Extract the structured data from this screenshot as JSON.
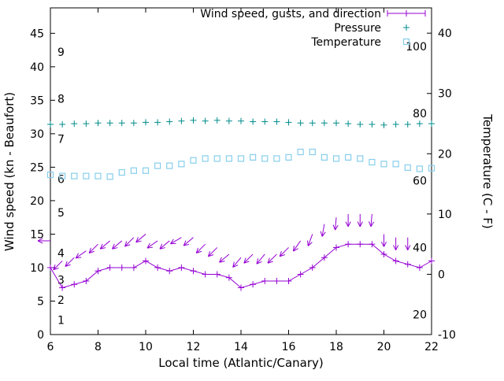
{
  "chart_data": {
    "type": "line",
    "title": "",
    "xlabel": "Local time (Atlantic/Canary)",
    "ylabel_left": "Wind speed (kn - Beaufort)",
    "ylabel_right": "Temperature (C - F)",
    "x_range": [
      6,
      22
    ],
    "y_left_range": [
      0,
      48.8
    ],
    "y_right_range": [
      -10,
      44.2
    ],
    "x_ticks": [
      6,
      8,
      10,
      12,
      14,
      16,
      18,
      20,
      22
    ],
    "y_left_ticks": [
      0,
      5,
      10,
      15,
      20,
      25,
      30,
      35,
      40,
      45
    ],
    "y_right_ticks": [
      -10,
      0,
      10,
      20,
      30,
      40
    ],
    "grid": false,
    "legend_position": "top-right-inside",
    "colors": {
      "wind": "#9400d3",
      "pressure": "#008b8b",
      "temperature": "#87ceeb",
      "axis": "#000000"
    },
    "beaufort_labels": [
      {
        "label": "1",
        "kn": 1
      },
      {
        "label": "2",
        "kn": 4
      },
      {
        "label": "3",
        "kn": 7
      },
      {
        "label": "4",
        "kn": 11
      },
      {
        "label": "5",
        "kn": 17
      },
      {
        "label": "6",
        "kn": 22
      },
      {
        "label": "7",
        "kn": 28
      },
      {
        "label": "8",
        "kn": 34
      },
      {
        "label": "9",
        "kn": 41
      }
    ],
    "fahrenheit_labels": [
      {
        "label": "20",
        "f": 20
      },
      {
        "label": "40",
        "f": 40
      },
      {
        "label": "60",
        "f": 60
      },
      {
        "label": "80",
        "f": 80
      },
      {
        "label": "100",
        "f": 100
      }
    ],
    "x": [
      6,
      6.5,
      7,
      7.5,
      8,
      8.5,
      9,
      9.5,
      10,
      10.5,
      11,
      11.5,
      12,
      12.5,
      13,
      13.5,
      14,
      14.5,
      15,
      15.5,
      16,
      16.5,
      17,
      17.5,
      18,
      18.5,
      19,
      19.5,
      20,
      20.5,
      21,
      21.5,
      22
    ],
    "series": [
      {
        "name": "Wind speed, gusts, and direction",
        "type": "line-plus",
        "axis": "left",
        "values": [
          10,
          7,
          7.5,
          8,
          9.5,
          10,
          10,
          10,
          11,
          10,
          9.5,
          10,
          9.5,
          9,
          9,
          8.5,
          7,
          7.5,
          8,
          8,
          8,
          9,
          10,
          11.5,
          13,
          13.5,
          13.5,
          13.5,
          12,
          11,
          10.5,
          10,
          11
        ]
      },
      {
        "name": "Pressure",
        "type": "points-plus",
        "axis": "left",
        "values": [
          31.4,
          31.4,
          31.5,
          31.5,
          31.6,
          31.6,
          31.6,
          31.6,
          31.7,
          31.7,
          31.8,
          31.9,
          32,
          31.9,
          32,
          31.9,
          31.9,
          31.8,
          31.8,
          31.8,
          31.7,
          31.6,
          31.6,
          31.6,
          31.6,
          31.5,
          31.4,
          31.4,
          31.3,
          31.4,
          31.4,
          31.5,
          31.5
        ]
      },
      {
        "name": "Temperature",
        "type": "points-square",
        "axis": "right",
        "values": [
          16.5,
          16.3,
          16.3,
          16.3,
          16.3,
          16.2,
          16.9,
          17.2,
          17.2,
          18,
          18,
          18.3,
          18.9,
          19.2,
          19.2,
          19.2,
          19.2,
          19.4,
          19.2,
          19.2,
          19.4,
          20.3,
          20.3,
          19.4,
          19.2,
          19.4,
          19.2,
          18.6,
          18.3,
          18.3,
          17.7,
          17.5,
          17.6
        ]
      }
    ],
    "gusts": {
      "x": [
        6,
        6.5,
        7,
        7.5,
        8,
        8.5,
        9,
        9.5,
        10,
        10.5,
        11,
        11.5,
        12,
        12.5,
        13,
        13.5,
        14,
        14.5,
        15,
        15.5,
        16,
        16.5,
        17,
        17.5,
        18,
        18.5,
        19,
        19.5,
        20,
        20.5,
        21
      ],
      "kn": [
        14,
        11,
        11.5,
        12.5,
        13.5,
        14,
        14,
        14.5,
        15,
        14,
        14,
        14.5,
        14.5,
        13.5,
        13,
        12,
        11.5,
        12,
        12,
        12,
        13,
        14,
        15,
        16.5,
        17.5,
        18,
        18,
        18,
        15,
        14.5,
        14.5
      ],
      "dir_deg": [
        270,
        225,
        225,
        235,
        225,
        230,
        230,
        225,
        230,
        235,
        230,
        240,
        230,
        225,
        225,
        230,
        220,
        225,
        220,
        225,
        225,
        215,
        200,
        190,
        185,
        180,
        180,
        185,
        180,
        180,
        180
      ]
    }
  }
}
